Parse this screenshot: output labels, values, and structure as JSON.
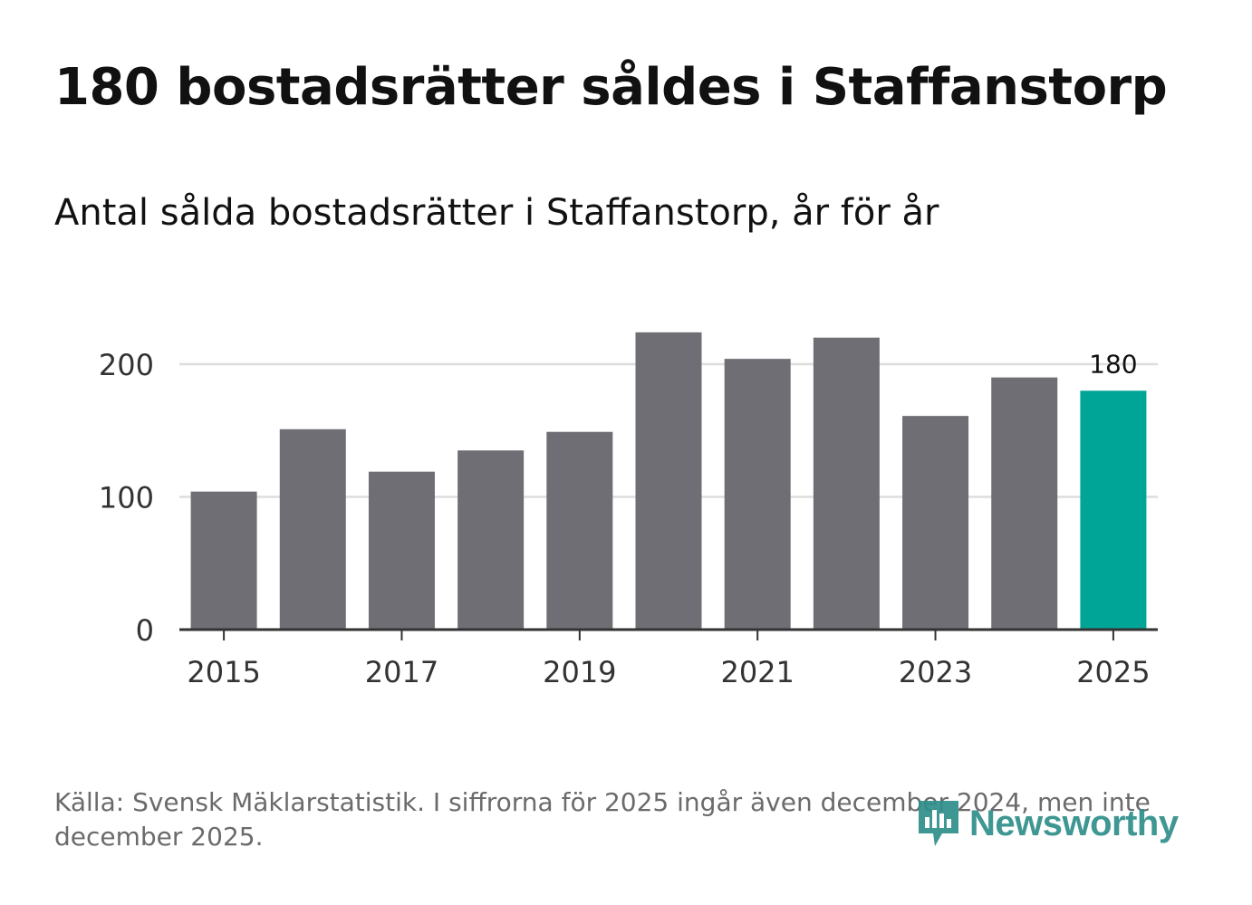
{
  "title": "180 bostadsrätter såldes i Staffanstorp",
  "subtitle": "Antal sålda bostadsrätter i Staffanstorp, år för år",
  "source": "Källa: Svensk Mäklarstatistik. I siffrorna för 2025 ingår även december 2024, men inte december 2025.",
  "logo": {
    "text": "Newsworthy",
    "icon": "newsworthy-bar-chart-icon",
    "color": "#2f8f8a"
  },
  "colors": {
    "bar": "#6f6e74",
    "highlight": "#00a598",
    "grid": "#dddddd",
    "axis": "#333333",
    "text": "#333333"
  },
  "chart_data": {
    "type": "bar",
    "categories": [
      "2015",
      "2016",
      "2017",
      "2018",
      "2019",
      "2020",
      "2021",
      "2022",
      "2023",
      "2024",
      "2025"
    ],
    "values": [
      104,
      151,
      119,
      135,
      149,
      224,
      204,
      220,
      161,
      190,
      180
    ],
    "highlight_index": 10,
    "data_labels": [
      {
        "index": 10,
        "text": "180"
      }
    ],
    "xticks": [
      "2015",
      "2017",
      "2019",
      "2021",
      "2023",
      "2025"
    ],
    "yticks": [
      0,
      100,
      200
    ],
    "ylim": [
      0,
      230
    ],
    "title": "180 bostadsrätter såldes i Staffanstorp",
    "subtitle": "Antal sålda bostadsrätter i Staffanstorp, år för år",
    "xlabel": "",
    "ylabel": "",
    "grid": true
  }
}
